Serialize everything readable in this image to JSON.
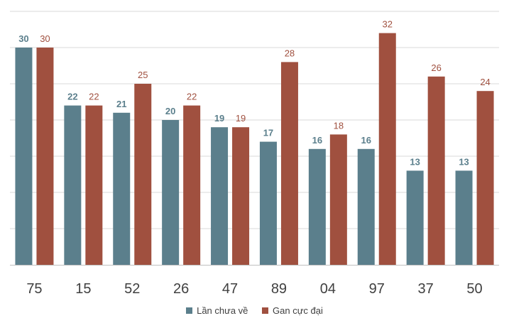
{
  "chart_data": {
    "type": "bar",
    "categories": [
      "75",
      "15",
      "52",
      "26",
      "47",
      "89",
      "04",
      "97",
      "37",
      "50"
    ],
    "series": [
      {
        "name": "Lần chưa về",
        "values": [
          30,
          22,
          21,
          20,
          19,
          17,
          16,
          16,
          13,
          13
        ],
        "color": "#5b7f8c"
      },
      {
        "name": "Gan cực đại",
        "values": [
          30,
          22,
          25,
          22,
          19,
          28,
          18,
          32,
          26,
          24
        ],
        "color": "#a0503f"
      }
    ],
    "ylim": [
      0,
      35
    ],
    "grid": true,
    "legend_position": "bottom",
    "title": "",
    "xlabel": "",
    "ylabel": ""
  }
}
